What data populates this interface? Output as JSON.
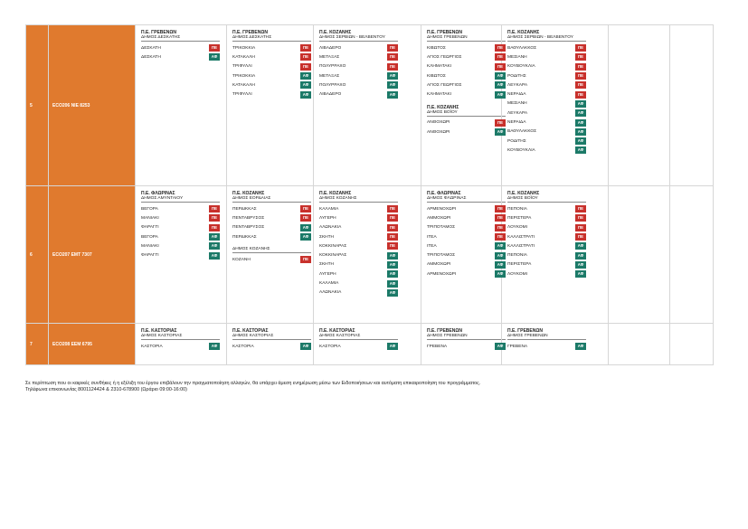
{
  "colors": {
    "orange": "#e07a2e",
    "pe_badge": "#c8312c",
    "af_badge": "#1c7a68"
  },
  "rows": [
    {
      "num": "5",
      "code": "ECO206  NIE 8253",
      "cells": [
        {
          "blocks": [
            {
              "pe": "Π.Ε. ΓΡΕΒΕΝΩΝ",
              "dimos": "ΔΗΜΟΣ ΔΕΣΚΑΤΗΣ",
              "items": [
                {
                  "name": "ΔΕΣΚΑΤΗ",
                  "badge": "ΠΕ",
                  "kind": "pe"
                },
                {
                  "name": "ΔΕΣΚΑΤΗ",
                  "badge": "ΑΦ",
                  "kind": "af"
                }
              ]
            }
          ]
        },
        {
          "blocks": [
            {
              "pe": "Π.Ε. ΓΡΕΒΕΝΩΝ",
              "dimos": "ΔΗΜΟΣ ΔΕΣΚΑΤΗΣ",
              "items": [
                {
                  "name": "ΤΡΙΚΟΚΚΙΑ",
                  "badge": "ΠΕ",
                  "kind": "pe"
                },
                {
                  "name": "ΚΑΤΑΚΑΛΗ",
                  "badge": "ΠΕ",
                  "kind": "pe"
                },
                {
                  "name": "ΤΡΙΦΥΛΛΙ",
                  "badge": "ΠΕ",
                  "kind": "pe"
                },
                {
                  "name": "ΤΡΙΚΟΚΚΙΑ",
                  "badge": "ΑΦ",
                  "kind": "af"
                },
                {
                  "name": "ΚΑΤΑΚΑΛΗ",
                  "badge": "ΑΦ",
                  "kind": "af"
                },
                {
                  "name": "ΤΡΙΦΥΛΛΙ",
                  "badge": "ΑΦ",
                  "kind": "af"
                }
              ]
            }
          ]
        },
        {
          "blocks": [
            {
              "pe": "Π.Ε. ΚΟΖΑΝΗΣ",
              "dimos": "ΔΗΜΟΣ ΣΕΡΒΙΩΝ - ΒΕΛΒΕΝΤΟΥ",
              "items": [
                {
                  "name": "ΛΙΒΑΔΕΡΟ",
                  "badge": "ΠΕ",
                  "kind": "pe"
                },
                {
                  "name": "ΜΕΤΑΞΑΣ",
                  "badge": "ΠΕ",
                  "kind": "pe"
                },
                {
                  "name": "ΠΟΛΥΡΡΑΧΟ",
                  "badge": "ΠΕ",
                  "kind": "pe"
                },
                {
                  "name": "ΜΕΤΑΞΑΣ",
                  "badge": "ΑΦ",
                  "kind": "af"
                },
                {
                  "name": "ΠΟΛΥΡΡΑΧΟ",
                  "badge": "ΑΦ",
                  "kind": "af"
                },
                {
                  "name": "ΛΙΒΑΔΕΡΟ",
                  "badge": "ΑΦ",
                  "kind": "af"
                }
              ]
            }
          ]
        },
        {
          "blocks": [
            {
              "pe": "Π.Ε. ΓΡΕΒΕΝΩΝ",
              "dimos": "ΔΗΜΟΣ ΓΡΕΒΕΝΩΝ",
              "items": [
                {
                  "name": "ΚΙΒΩΤΟΣ",
                  "badge": "ΠΕ",
                  "kind": "pe"
                },
                {
                  "name": "ΑΓΙΟΣ ΓΕΩΡΓΙΟΣ",
                  "badge": "ΠΕ",
                  "kind": "pe"
                },
                {
                  "name": "ΚΛΗΜΑΤΑΚΙ",
                  "badge": "ΠΕ",
                  "kind": "pe"
                },
                {
                  "name": "ΚΙΒΩΤΟΣ",
                  "badge": "ΑΦ",
                  "kind": "af"
                },
                {
                  "name": "ΑΓΙΟΣ ΓΕΩΡΓΙΟΣ",
                  "badge": "ΑΦ",
                  "kind": "af"
                },
                {
                  "name": "ΚΛΗΜΑΤΑΚΙ",
                  "badge": "ΑΦ",
                  "kind": "af"
                }
              ]
            },
            {
              "pe": "Π.Ε. ΚΟΖΑΝΗΣ",
              "dimos": "ΔΗΜΟΣ ΒΟΪΟΥ",
              "items": [
                {
                  "name": "ΑΝΘΟΧΩΡΙ",
                  "badge": "ΠΕ",
                  "kind": "pe"
                },
                {
                  "name": "ΑΝΘΟΧΩΡΙ",
                  "badge": "ΑΦ",
                  "kind": "af"
                }
              ]
            }
          ]
        },
        {
          "blocks": [
            {
              "pe": "Π.Ε. ΚΟΖΑΝΗΣ",
              "dimos": "ΔΗΜΟΣ ΣΕΡΒΙΩΝ - ΒΕΛΒΕΝΤΟΥ",
              "items": [
                {
                  "name": "ΒΑΘΥΛΑΚΚΟΣ",
                  "badge": "ΠΕ",
                  "kind": "pe"
                },
                {
                  "name": "ΜΕΣΙΑΝΗ",
                  "badge": "ΠΕ",
                  "kind": "pe"
                },
                {
                  "name": "ΚΟΥΒΟΥΚΛΙΑ",
                  "badge": "ΠΕ",
                  "kind": "pe"
                },
                {
                  "name": "ΡΟΔΙΤΗΣ",
                  "badge": "ΠΕ",
                  "kind": "pe"
                },
                {
                  "name": "ΛΕΥΚΑΡΑ",
                  "badge": "ΠΕ",
                  "kind": "pe"
                },
                {
                  "name": "ΝΕΡΑΙΔΑ",
                  "badge": "ΠΕ",
                  "kind": "pe"
                },
                {
                  "name": "ΜΕΣΙΑΝΗ",
                  "badge": "ΑΦ",
                  "kind": "af"
                },
                {
                  "name": "ΛΕΥΚΑΡΑ",
                  "badge": "ΑΦ",
                  "kind": "af"
                },
                {
                  "name": "ΝΕΡΑΙΔΑ",
                  "badge": "ΑΦ",
                  "kind": "af"
                },
                {
                  "name": "ΒΑΘΥΛΑΚΚΟΣ",
                  "badge": "ΑΦ",
                  "kind": "af"
                },
                {
                  "name": "ΡΟΔΙΤΗΣ",
                  "badge": "ΑΦ",
                  "kind": "af"
                },
                {
                  "name": "ΚΟΥΒΟΥΚΛΙΑ",
                  "badge": "ΑΦ",
                  "kind": "af"
                }
              ]
            }
          ]
        }
      ]
    },
    {
      "num": "6",
      "code": "ECO207  EMT 7307",
      "cells": [
        {
          "blocks": [
            {
              "pe": "Π.Ε. ΦΛΩΡΙΝΑΣ",
              "dimos": "ΔΗΜΟΣ ΑΜΥΝΤΑΙΟΥ",
              "items": [
                {
                  "name": "ΒΕΓΟΡΑ",
                  "badge": "ΠΕ",
                  "kind": "pe"
                },
                {
                  "name": "ΜΑΝΙΑΚΙ",
                  "badge": "ΠΕ",
                  "kind": "pe"
                },
                {
                  "name": "ΦΑΡΑΓΓΙ",
                  "badge": "ΠΕ",
                  "kind": "pe"
                },
                {
                  "name": "ΒΕΓΟΡΑ",
                  "badge": "ΑΦ",
                  "kind": "af"
                },
                {
                  "name": "ΜΑΝΙΑΚΙ",
                  "badge": "ΑΦ",
                  "kind": "af"
                },
                {
                  "name": "ΦΑΡΑΓΓΙ",
                  "badge": "ΑΦ",
                  "kind": "af"
                }
              ]
            }
          ]
        },
        {
          "blocks": [
            {
              "pe": "Π.Ε. ΚΟΖΑΝΗΣ",
              "dimos": "ΔΗΜΟΣ ΕΟΡΔΑΙΑΣ",
              "items": [
                {
                  "name": "ΠΕΡΔΙΚΚΑΣ",
                  "badge": "ΠΕ",
                  "kind": "pe"
                },
                {
                  "name": "ΠΕΝΤΑΒΡΥΣΟΣ",
                  "badge": "ΠΕ",
                  "kind": "pe"
                },
                {
                  "name": "ΠΕΝΤΑΒΡΥΣΟΣ",
                  "badge": "ΑΦ",
                  "kind": "af"
                },
                {
                  "name": "ΠΕΡΔΙΚΚΑΣ",
                  "badge": "ΑΦ",
                  "kind": "af"
                }
              ]
            },
            {
              "pe": "",
              "dimos": "ΔΗΜΟΣ ΚΟΖΑΝΗΣ",
              "items": [
                {
                  "name": "ΚΟΖΑΝΗ",
                  "badge": "ΠΕ",
                  "kind": "pe"
                }
              ]
            }
          ]
        },
        {
          "blocks": [
            {
              "pe": "Π.Ε. ΚΟΖΑΝΗΣ",
              "dimos": "ΔΗΜΟΣ ΚΟΖΑΝΗΣ",
              "items": [
                {
                  "name": "ΚΑΛΑΜΙΑ",
                  "badge": "ΠΕ",
                  "kind": "pe"
                },
                {
                  "name": "ΛΥΓΕΡΗ",
                  "badge": "ΠΕ",
                  "kind": "pe"
                },
                {
                  "name": "ΑΛΩΝΑΚΙΑ",
                  "badge": "ΠΕ",
                  "kind": "pe"
                },
                {
                  "name": "ΣΚΗΤΗ",
                  "badge": "ΠΕ",
                  "kind": "pe"
                },
                {
                  "name": "ΚΟΚΚΙΝΑΡΑΣ",
                  "badge": "ΠΕ",
                  "kind": "pe"
                },
                {
                  "name": "ΚΟΚΚΙΝΑΡΑΣ",
                  "badge": "ΑΦ",
                  "kind": "af"
                },
                {
                  "name": "ΣΚΗΤΗ",
                  "badge": "ΑΦ",
                  "kind": "af"
                },
                {
                  "name": "ΛΥΓΕΡΗ",
                  "badge": "ΑΦ",
                  "kind": "af"
                },
                {
                  "name": "ΚΑΛΑΜΙΑ",
                  "badge": "ΑΦ",
                  "kind": "af"
                },
                {
                  "name": "ΑΛΩΝΑΚΙΑ",
                  "badge": "ΑΦ",
                  "kind": "af"
                }
              ]
            }
          ]
        },
        {
          "blocks": [
            {
              "pe": "Π.Ε. ΦΛΩΡΙΝΑΣ",
              "dimos": "ΔΗΜΟΣ ΦΛΩΡΙΝΑΣ",
              "items": [
                {
                  "name": "ΑΡΜΕΝΟΧΩΡΙ",
                  "badge": "ΠΕ",
                  "kind": "pe"
                },
                {
                  "name": "ΑΜΜΟΧΩΡΙ",
                  "badge": "ΠΕ",
                  "kind": "pe"
                },
                {
                  "name": "ΤΡΙΠΟΤΑΜΟΣ",
                  "badge": "ΠΕ",
                  "kind": "pe"
                },
                {
                  "name": "ΙΤΕΑ",
                  "badge": "ΠΕ",
                  "kind": "pe"
                },
                {
                  "name": "ΙΤΕΑ",
                  "badge": "ΑΦ",
                  "kind": "af"
                },
                {
                  "name": "ΤΡΙΠΟΤΑΜΟΣ",
                  "badge": "ΑΦ",
                  "kind": "af"
                },
                {
                  "name": "ΑΜΜΟΧΩΡΙ",
                  "badge": "ΑΦ",
                  "kind": "af"
                },
                {
                  "name": "ΑΡΜΕΝΟΧΩΡΙ",
                  "badge": "ΑΦ",
                  "kind": "af"
                }
              ]
            }
          ]
        },
        {
          "blocks": [
            {
              "pe": "Π.Ε. ΚΟΖΑΝΗΣ",
              "dimos": "ΔΗΜΟΣ ΒΟΪΟΥ",
              "items": [
                {
                  "name": "ΠΕΠΟΝΙΑ",
                  "badge": "ΠΕ",
                  "kind": "pe"
                },
                {
                  "name": "ΠΕΡΙΣΤΕΡΑ",
                  "badge": "ΠΕ",
                  "kind": "pe"
                },
                {
                  "name": "ΛΟΥΚΟΜΙ",
                  "badge": "ΠΕ",
                  "kind": "pe"
                },
                {
                  "name": "ΚΑΛΛΙΣΤΡΑΤΙ",
                  "badge": "ΠΕ",
                  "kind": "pe"
                },
                {
                  "name": "ΚΑΛΛΙΣΤΡΑΤΙ",
                  "badge": "ΑΦ",
                  "kind": "af"
                },
                {
                  "name": "ΠΕΠΟΝΙΑ",
                  "badge": "ΑΦ",
                  "kind": "af"
                },
                {
                  "name": "ΠΕΡΙΣΤΕΡΑ",
                  "badge": "ΑΦ",
                  "kind": "af"
                },
                {
                  "name": "ΛΟΥΚΟΜΙ",
                  "badge": "ΑΦ",
                  "kind": "af"
                }
              ]
            }
          ]
        }
      ]
    },
    {
      "num": "7",
      "code": "ECO208  EEM 6795",
      "cells": [
        {
          "blocks": [
            {
              "pe": "Π.Ε. ΚΑΣΤΟΡΙΑΣ",
              "dimos": "ΔΗΜΟΣ ΚΑΣΤΟΡΙΑΣ",
              "items": [
                {
                  "name": "ΚΑΣΤΟΡΙΑ",
                  "badge": "ΑΦ",
                  "kind": "af"
                }
              ]
            }
          ]
        },
        {
          "blocks": [
            {
              "pe": "Π.Ε. ΚΑΣΤΟΡΙΑΣ",
              "dimos": "ΔΗΜΟΣ ΚΑΣΤΟΡΙΑΣ",
              "items": [
                {
                  "name": "ΚΑΣΤΟΡΙΑ",
                  "badge": "ΑΦ",
                  "kind": "af"
                }
              ]
            }
          ]
        },
        {
          "blocks": [
            {
              "pe": "Π.Ε. ΚΑΣΤΟΡΙΑΣ",
              "dimos": "ΔΗΜΟΣ ΚΑΣΤΟΡΙΑΣ",
              "items": [
                {
                  "name": "ΚΑΣΤΟΡΙΑ",
                  "badge": "ΑΦ",
                  "kind": "af"
                }
              ]
            }
          ]
        },
        {
          "blocks": [
            {
              "pe": "Π.Ε. ΓΡΕΒΕΝΩΝ",
              "dimos": "ΔΗΜΟΣ ΓΡΕΒΕΝΩΝ",
              "items": [
                {
                  "name": "ΓΡΕΒΕΝΑ",
                  "badge": "ΑΦ",
                  "kind": "af"
                }
              ]
            }
          ]
        },
        {
          "blocks": [
            {
              "pe": "Π.Ε. ΓΡΕΒΕΝΩΝ",
              "dimos": "ΔΗΜΟΣ ΓΡΕΒΕΝΩΝ",
              "items": [
                {
                  "name": "ΓΡΕΒΕΝΑ",
                  "badge": "ΑΦ",
                  "kind": "af"
                }
              ]
            }
          ]
        }
      ]
    }
  ],
  "footer": {
    "line1": "Σε περίπτωση που οι καιρικές συνθήκες ή η εξέλιξη του έργου επιβάλουν την πραγματοποίηση αλλαγών, θα υπάρχει άμεση ενημέρωση μέσω των Ειδοποιήσεων και αυτόματη επικαιροποίηση του προγράμματος.",
    "line2": "Τηλέφωνα επικοινωνίας 8001124424 & 2310-678900 (Ωράριο 09:00-16:00)"
  }
}
